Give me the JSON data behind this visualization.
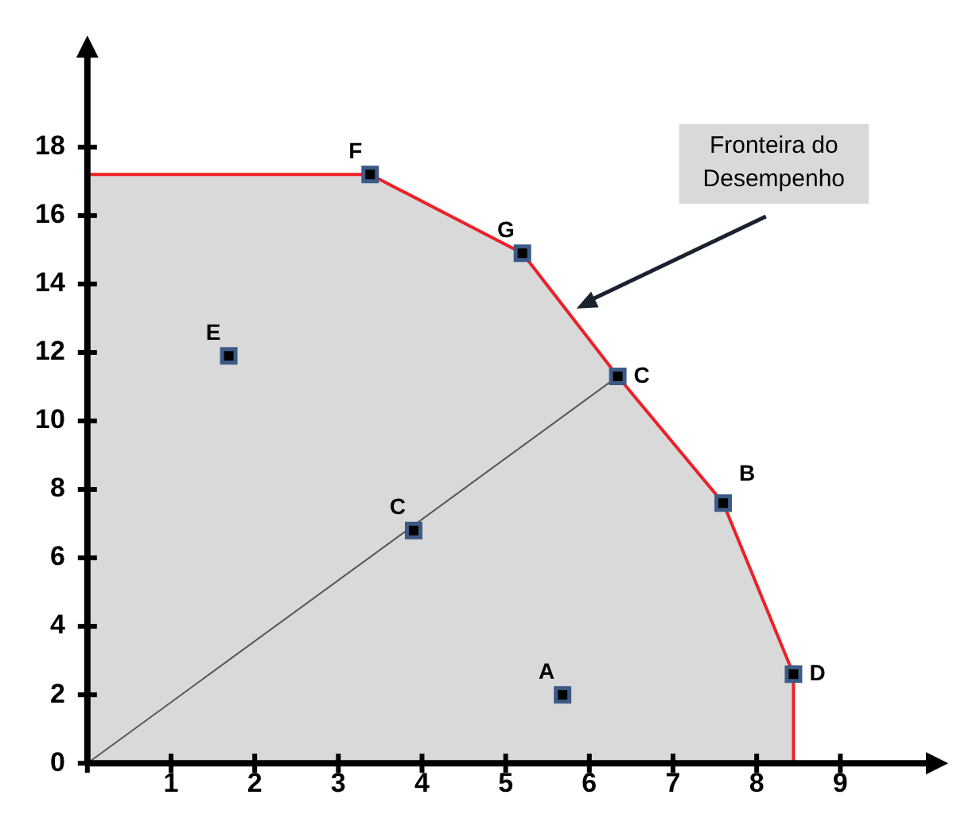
{
  "chart_data": {
    "type": "scatter",
    "xlim": [
      0,
      10.1
    ],
    "ylim": [
      0,
      20.8
    ],
    "xticks": [
      {
        "value": 0,
        "label": null
      },
      1,
      2,
      3,
      4,
      5,
      6,
      7,
      8,
      9
    ],
    "yticks": [
      0,
      2,
      4,
      6,
      8,
      10,
      12,
      14,
      16,
      18
    ],
    "grid": false,
    "legend": false,
    "series": [
      {
        "type": "area",
        "color": "#ee2028",
        "marker": "none",
        "x": [
          0,
          3.38,
          5.2,
          6.34,
          7.6,
          8.44,
          8.44
        ],
        "values": [
          17.2,
          17.2,
          14.9,
          11.3,
          7.6,
          2.6,
          0
        ]
      },
      {
        "type": "line",
        "color": "#555555",
        "marker": "none",
        "x": [
          0,
          6.34
        ],
        "values": [
          0,
          11.3
        ]
      },
      {
        "color": "#3b5a86",
        "marker": "square",
        "x": [
          3.38,
          5.2,
          6.34,
          7.6,
          8.44,
          1.69,
          3.9,
          5.68
        ],
        "values": [
          17.2,
          14.9,
          11.3,
          7.6,
          2.6,
          11.9,
          6.8,
          2.0
        ]
      }
    ],
    "annotations": [
      {
        "text": "F",
        "x": 3.38,
        "y": 17.2
      },
      {
        "text": "G",
        "x": 5.2,
        "y": 14.9
      },
      {
        "text": "C",
        "x": 6.34,
        "y": 11.3
      },
      {
        "text": "B",
        "x": 7.6,
        "y": 7.6
      },
      {
        "text": "D",
        "x": 8.44,
        "y": 2.6
      },
      {
        "text": "E",
        "x": 1.69,
        "y": 11.9
      },
      {
        "text": "C",
        "x": 3.9,
        "y": 6.8
      },
      {
        "text": "A",
        "x": 5.68,
        "y": 2.0
      },
      "Fronteira do\nDesempenho"
    ]
  }
}
